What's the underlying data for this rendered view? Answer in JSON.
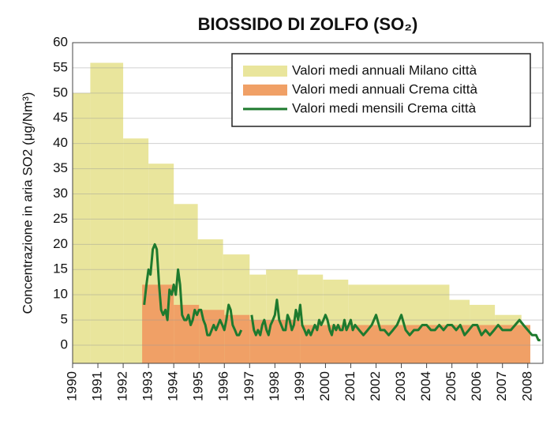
{
  "chart_data": {
    "type": "step-area-line",
    "title": "BIOSSIDO DI ZOLFO (SO₂)",
    "y_label": "Concentrazione in aria SO2 (μg/Nm³)",
    "xlim": [
      1990,
      2008.6
    ],
    "xticks": [
      1990,
      1991,
      1992,
      1993,
      1994,
      1995,
      1996,
      1997,
      1998,
      1999,
      2000,
      2001,
      2002,
      2003,
      2004,
      2005,
      2006,
      2007,
      2008
    ],
    "ylim": [
      -3.6,
      60
    ],
    "yticks": [
      0,
      5,
      10,
      15,
      20,
      25,
      30,
      35,
      40,
      45,
      50,
      55,
      60
    ],
    "grid": true,
    "legend": "upper right",
    "series": [
      {
        "name": "Valori medi annuali Milano città",
        "color": "#e9e59c",
        "kind": "step",
        "bins": [
          1990,
          1990.7,
          1992,
          1993,
          1994,
          1994.95,
          1995.95,
          1997,
          1997.65,
          1998.9,
          1999.9,
          2000.9,
          2004.9,
          2005.7,
          2006.7,
          2007.75
        ],
        "values": [
          50,
          56,
          41,
          36,
          28,
          21,
          18,
          14,
          15,
          14,
          13,
          12,
          9,
          8,
          6
        ]
      },
      {
        "name": "Valori medi annuali Crema città",
        "color": "#f0a066",
        "kind": "step",
        "bins": [
          1992.75,
          1994,
          1995,
          1996,
          1997,
          1999,
          2008.1
        ],
        "values": [
          12,
          8,
          7,
          6,
          5,
          4
        ]
      },
      {
        "name": "Valori medi mensili Crema città",
        "color": "#1e7a2e",
        "kind": "line",
        "x": [
          1992.83,
          1992.92,
          1993.0,
          1993.08,
          1993.17,
          1993.25,
          1993.33,
          1993.42,
          1993.5,
          1993.58,
          1993.67,
          1993.75,
          1993.83,
          1993.92,
          1994.0,
          1994.08,
          1994.17,
          1994.25,
          1994.33,
          1994.42,
          1994.5,
          1994.58,
          1994.67,
          1994.75,
          1994.83,
          1994.92,
          1995.0,
          1995.08,
          1995.17,
          1995.25,
          1995.33,
          1995.42,
          1995.5,
          1995.58,
          1995.67,
          1995.75,
          1995.83,
          1995.92,
          1996.0,
          1996.08,
          1996.17,
          1996.25,
          1996.33,
          1996.42,
          1996.5,
          1996.58,
          1996.67,
          1996.83,
          1997.08,
          1997.17,
          1997.25,
          1997.33,
          1997.42,
          1997.5,
          1997.58,
          1997.67,
          1997.75,
          1997.83,
          1997.92,
          1998.0,
          1998.08,
          1998.17,
          1998.25,
          1998.33,
          1998.42,
          1998.5,
          1998.58,
          1998.67,
          1998.75,
          1998.83,
          1998.92,
          1999.0,
          1999.08,
          1999.17,
          1999.25,
          1999.33,
          1999.42,
          1999.5,
          1999.58,
          1999.67,
          1999.75,
          1999.83,
          1999.92,
          2000.0,
          2000.08,
          2000.17,
          2000.25,
          2000.33,
          2000.42,
          2000.5,
          2000.58,
          2000.67,
          2000.75,
          2000.83,
          2000.92,
          2001.0,
          2001.08,
          2001.17,
          2001.33,
          2001.5,
          2001.67,
          2001.83,
          2002.0,
          2002.17,
          2002.33,
          2002.5,
          2002.67,
          2002.83,
          2003.0,
          2003.17,
          2003.33,
          2003.5,
          2003.67,
          2003.83,
          2004.0,
          2004.17,
          2004.33,
          2004.5,
          2004.67,
          2004.83,
          2005.0,
          2005.17,
          2005.33,
          2005.5,
          2005.67,
          2005.83,
          2006.0,
          2006.17,
          2006.33,
          2006.5,
          2006.67,
          2006.83,
          2007.0,
          2007.17,
          2007.33,
          2007.5,
          2007.67,
          2007.83,
          2008.0,
          2008.17,
          2008.33,
          2008.42,
          2008.5
        ],
        "values": [
          8,
          12,
          15,
          14,
          19,
          20,
          19,
          12,
          7,
          6,
          7,
          5,
          11,
          10,
          12,
          10,
          15,
          12,
          6,
          5,
          5,
          6,
          4,
          5,
          7,
          6,
          7,
          7,
          5,
          4,
          2,
          2,
          3,
          4,
          3,
          4,
          5,
          4,
          3,
          5,
          8,
          7,
          4,
          3,
          2,
          2,
          3,
          null,
          6,
          3,
          2,
          3,
          2,
          4,
          5,
          3,
          2,
          4,
          5,
          6,
          9,
          5,
          4,
          3,
          3,
          6,
          5,
          3,
          4,
          7,
          5,
          8,
          4,
          3,
          2,
          3,
          2,
          3,
          4,
          3,
          5,
          4,
          5,
          6,
          5,
          3,
          2,
          4,
          3,
          4,
          3,
          3,
          5,
          3,
          4,
          5,
          3,
          4,
          3,
          2,
          3,
          4,
          6,
          3,
          3,
          2,
          3,
          4,
          6,
          3,
          2,
          3,
          3,
          4,
          4,
          3,
          3,
          4,
          3,
          4,
          4,
          3,
          4,
          2,
          3,
          4,
          4,
          2,
          3,
          2,
          3,
          4,
          3,
          3,
          3,
          4,
          5,
          4,
          3,
          2,
          2,
          1,
          1
        ]
      }
    ]
  }
}
